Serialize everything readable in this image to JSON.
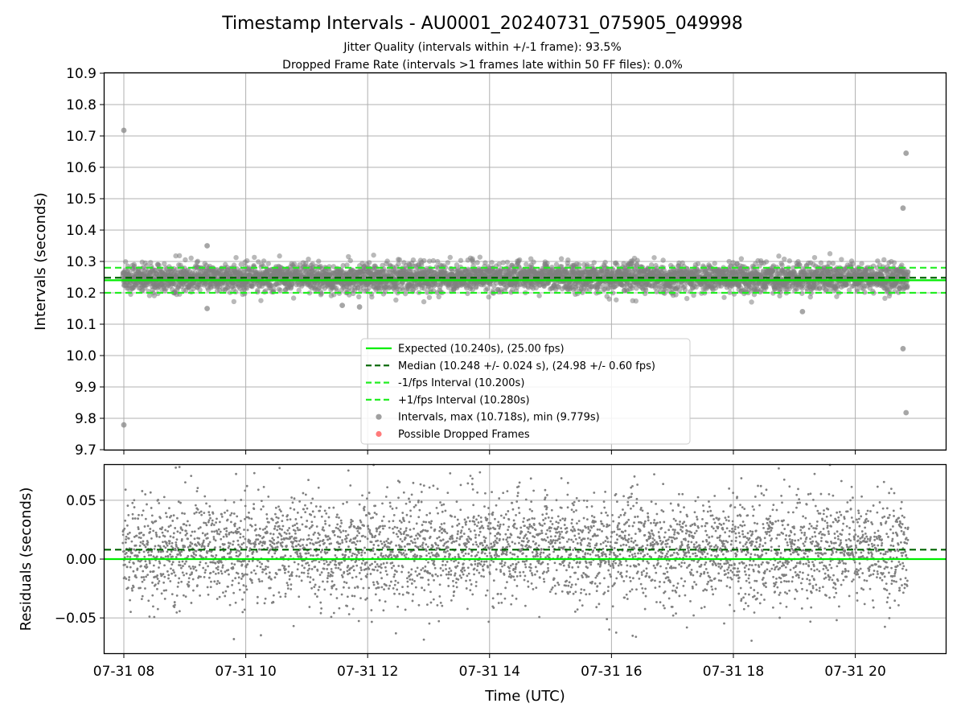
{
  "title": "Timestamp Intervals - AU0001_20240731_075905_049998",
  "subtitle_line1": "Jitter Quality (intervals within +/-1 frame): 93.5%",
  "subtitle_line2": "Dropped Frame Rate (intervals >1 frames late within 50 FF files): 0.0%",
  "colors": {
    "expected": "#00ee00",
    "median": "#006400",
    "bounds": "#22ee22",
    "points": "#808080",
    "dropped": "#ff4d4d",
    "grid": "#b0b0b0"
  },
  "chart_data": [
    {
      "type": "scatter",
      "panel": "intervals",
      "ylabel": "Intervals (seconds)",
      "ylim": [
        9.7,
        10.9
      ],
      "yticks": [
        "9.7",
        "9.8",
        "9.9",
        "10.0",
        "10.1",
        "10.2",
        "10.3",
        "10.4",
        "10.5",
        "10.6",
        "10.7",
        "10.8",
        "10.9"
      ],
      "xlim": [
        "2024-07-31 07:41",
        "2024-07-31 21:29"
      ],
      "grid": true,
      "legend_position": "lower center",
      "reference_lines": [
        {
          "name": "Expected (10.240s), (25.00 fps)",
          "y": 10.24,
          "style": "solid",
          "color": "#00ee00"
        },
        {
          "name": "Median (10.248 +/- 0.024 s), (24.98 +/- 0.60 fps)",
          "y": 10.248,
          "style": "dashed",
          "color": "#006400"
        },
        {
          "name": "-1/fps Interval (10.200s)",
          "y": 10.2,
          "style": "dashed",
          "color": "#22ee22"
        },
        {
          "name": "+1/fps Interval (10.280s)",
          "y": 10.28,
          "style": "dashed",
          "color": "#22ee22"
        }
      ],
      "series": [
        {
          "name": "Intervals, max (10.718s), min (9.779s)",
          "approx_count": 4300,
          "time_range": [
            "2024-07-31 07:59",
            "2024-07-31 20:52"
          ],
          "typical_band": [
            10.2,
            10.29
          ],
          "notable_points": [
            {
              "x": "2024-07-31 08:00",
              "y": 10.718
            },
            {
              "x": "2024-07-31 08:00",
              "y": 9.779
            },
            {
              "x": "2024-07-31 09:22",
              "y": 10.35
            },
            {
              "x": "2024-07-31 09:22",
              "y": 10.15
            },
            {
              "x": "2024-07-31 11:35",
              "y": 10.16
            },
            {
              "x": "2024-07-31 11:52",
              "y": 10.155
            },
            {
              "x": "2024-07-31 19:08",
              "y": 10.14
            },
            {
              "x": "2024-07-31 20:47",
              "y": 10.47
            },
            {
              "x": "2024-07-31 20:47",
              "y": 10.022
            },
            {
              "x": "2024-07-31 20:50",
              "y": 10.645
            },
            {
              "x": "2024-07-31 20:50",
              "y": 9.818
            }
          ]
        },
        {
          "name": "Possible Dropped Frames",
          "points": []
        }
      ]
    },
    {
      "type": "scatter",
      "panel": "residuals",
      "ylabel": "Residuals (seconds)",
      "xlabel": "Time (UTC)",
      "ylim": [
        -0.08,
        0.08
      ],
      "yticks": [
        "−0.05",
        "0.00",
        "0.05"
      ],
      "xticks": [
        "07-31 08",
        "07-31 10",
        "07-31 12",
        "07-31 14",
        "07-31 16",
        "07-31 18",
        "07-31 20"
      ],
      "xlim": [
        "2024-07-31 07:41",
        "2024-07-31 21:29"
      ],
      "grid": true,
      "reference_lines": [
        {
          "name": "Expected",
          "y": 0.0,
          "style": "solid",
          "color": "#00ee00"
        },
        {
          "name": "Median",
          "y": 0.008,
          "style": "dashed",
          "color": "#006400"
        }
      ],
      "series": [
        {
          "name": "Residuals",
          "approx_count": 4300,
          "time_range": [
            "2024-07-31 07:59",
            "2024-07-31 20:52"
          ],
          "typical_band": [
            -0.04,
            0.05
          ]
        }
      ]
    }
  ]
}
